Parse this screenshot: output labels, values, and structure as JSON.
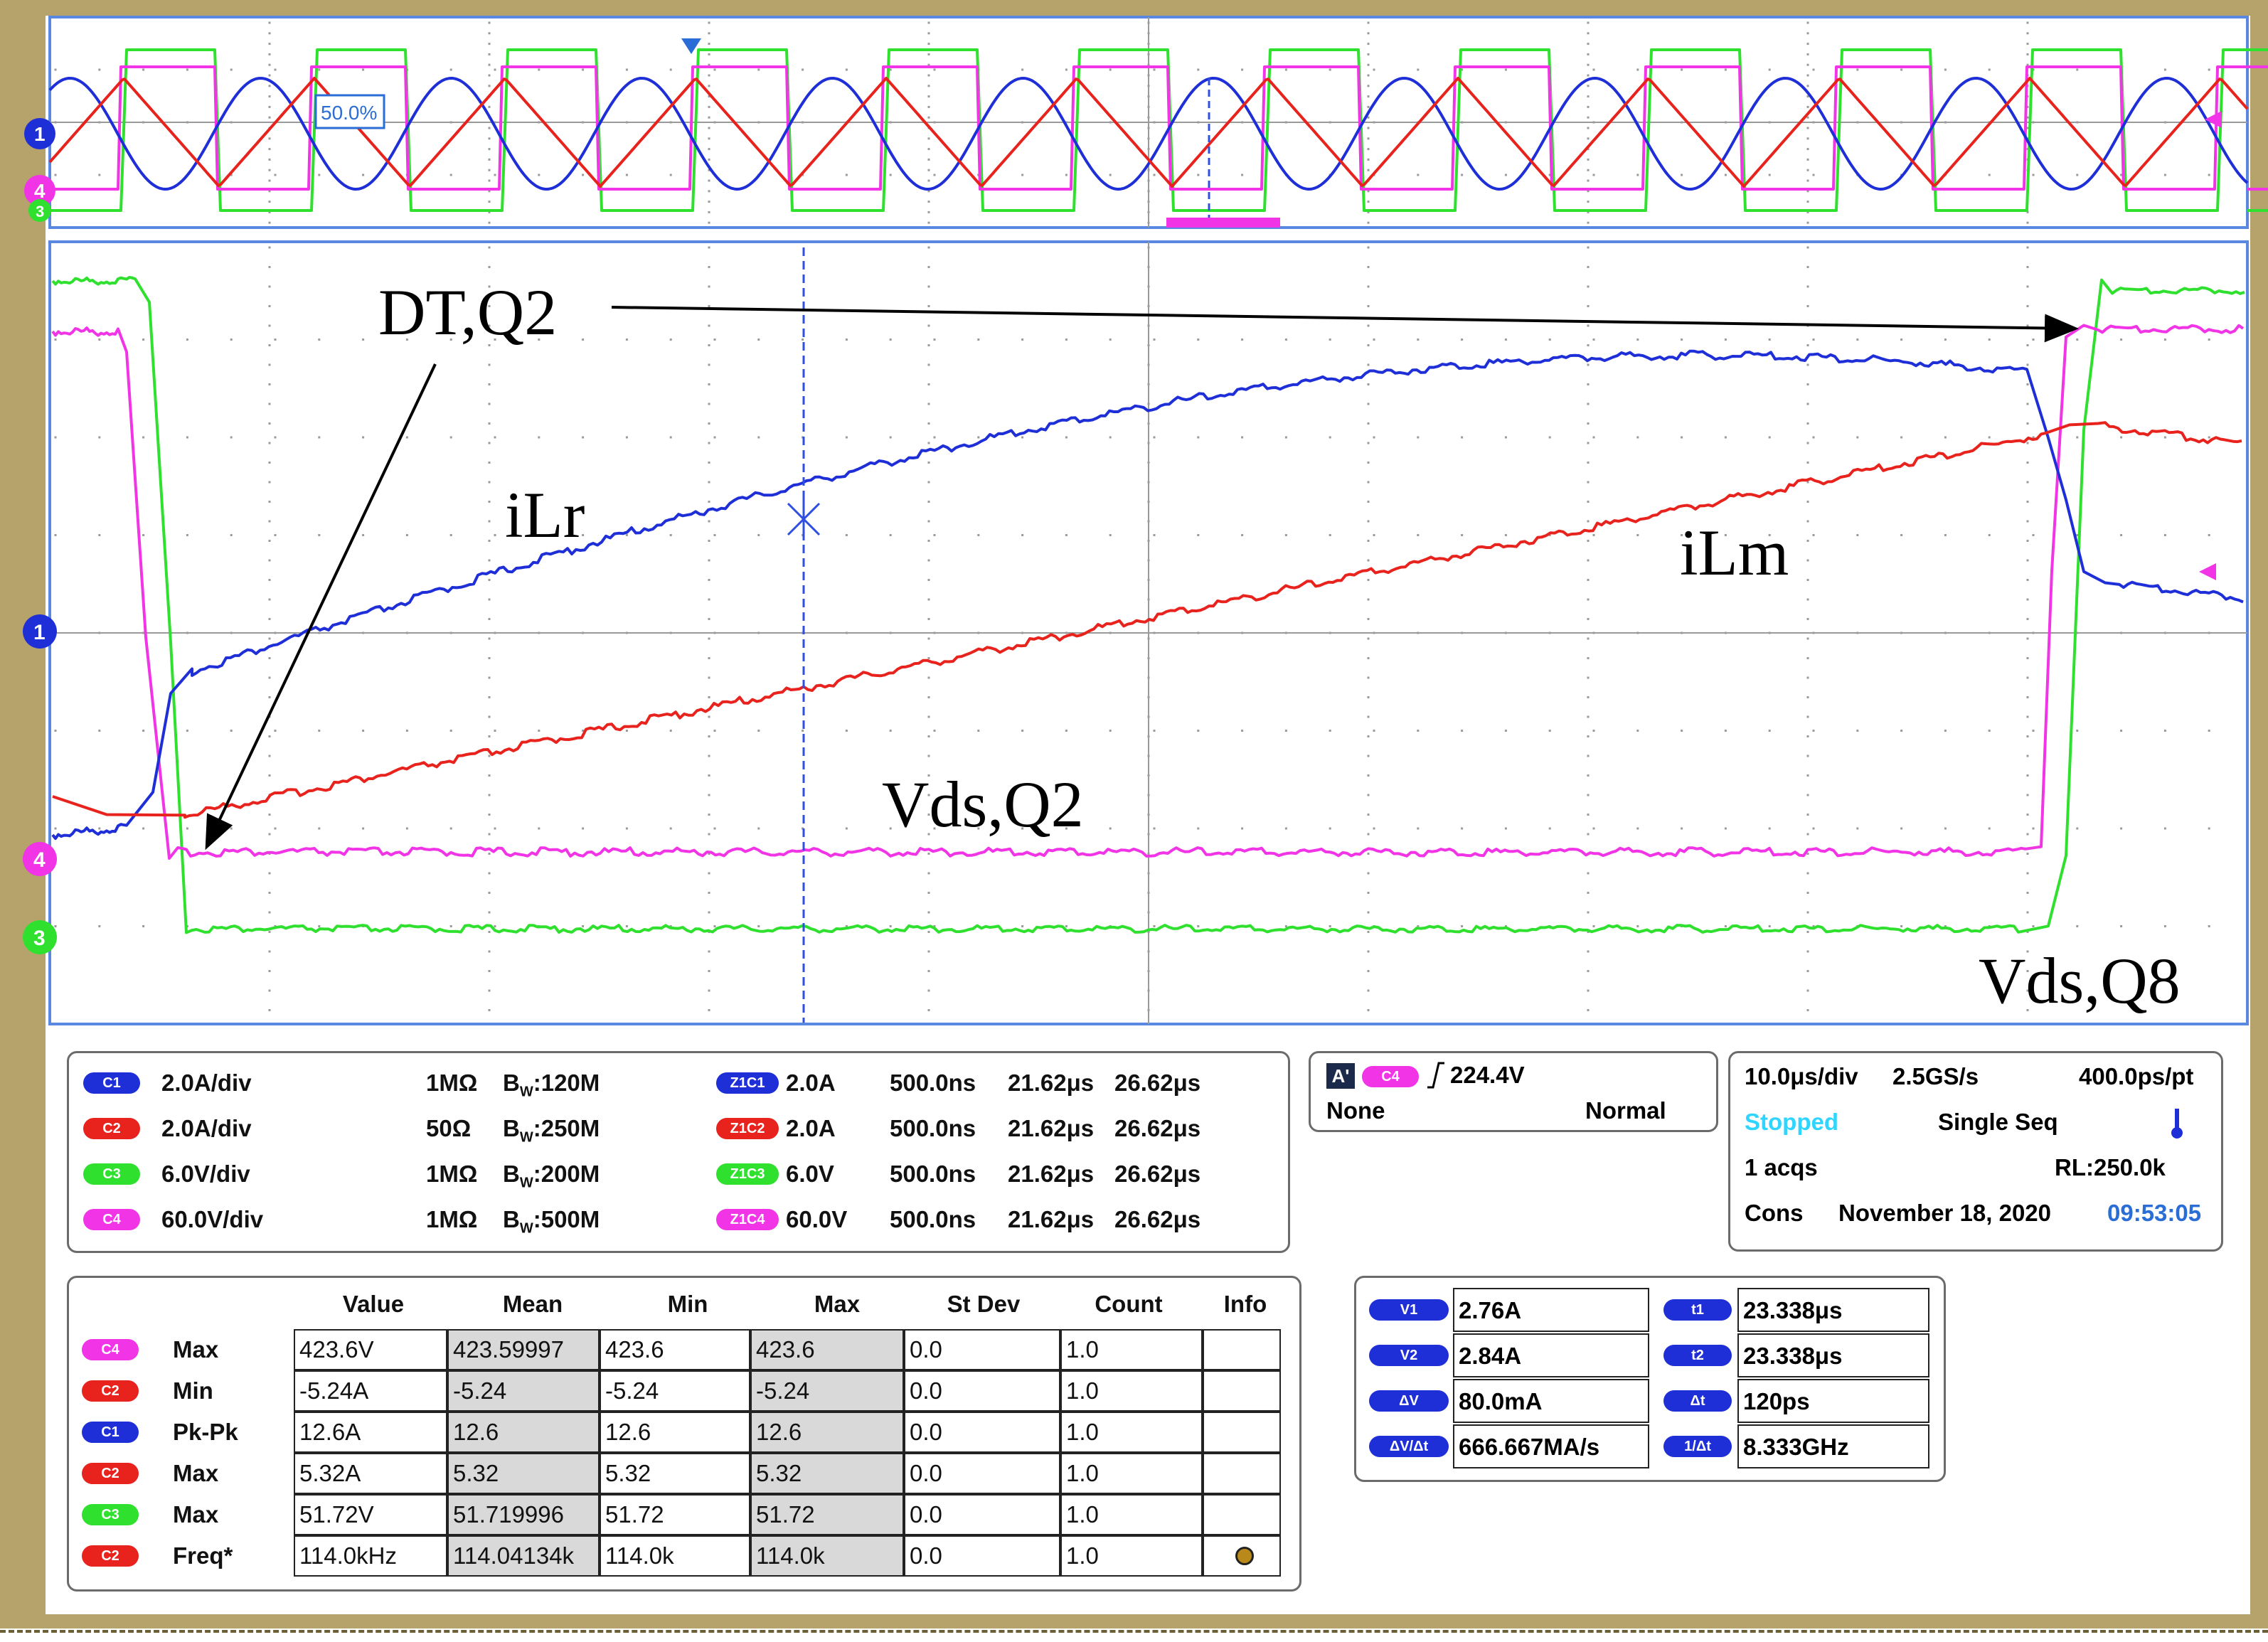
{
  "colors": {
    "c1": "#1f2fd8",
    "c2": "#e8221c",
    "c3": "#2fe02f",
    "c4": "#f034e6",
    "frame": "#b6a36b",
    "stopped": "#2fd5ff",
    "time_accent": "#2a6dd6"
  },
  "icons": {
    "trigger_edge": "rising-edge-icon",
    "thermometer": "thermometer-icon",
    "info": "info-dot-icon"
  },
  "annotations": {
    "dt_q2": "DT,Q2",
    "ilr": "iLr",
    "ilm": "iLm",
    "vds_q2": "Vds,Q2",
    "vds_q8": "Vds,Q8"
  },
  "zoom_window": {
    "percent_label": "50.0%",
    "marker_1": "1",
    "marker_4": "4",
    "marker_3": "3"
  },
  "main_markers": [
    "1",
    "4",
    "3"
  ],
  "chart_data": {
    "type": "line",
    "series": [
      {
        "name": "iLr",
        "channel": "C1"
      },
      {
        "name": "iLm",
        "channel": "C2"
      },
      {
        "name": "Vds,Q8",
        "channel": "C3"
      },
      {
        "name": "Vds,Q2",
        "channel": "C4"
      }
    ],
    "grid": true
  },
  "channels": [
    {
      "pill": "C1",
      "scale": "2.0A/div",
      "imp": "1MΩ",
      "bw_prefix": "B",
      "bw_sub": "W",
      "bw": ":120M",
      "zoom_pill": "Z1C1",
      "zoom_scale": "2.0A",
      "zoom_time": "500.0ns",
      "t_start": "21.62μs",
      "t_end": "26.62μs"
    },
    {
      "pill": "C2",
      "scale": "2.0A/div",
      "imp": "50Ω",
      "bw_prefix": "B",
      "bw_sub": "W",
      "bw": ":250M",
      "zoom_pill": "Z1C2",
      "zoom_scale": "2.0A",
      "zoom_time": "500.0ns",
      "t_start": "21.62μs",
      "t_end": "26.62μs"
    },
    {
      "pill": "C3",
      "scale": "6.0V/div",
      "imp": "1MΩ",
      "bw_prefix": "B",
      "bw_sub": "W",
      "bw": ":200M",
      "zoom_pill": "Z1C3",
      "zoom_scale": "6.0V",
      "zoom_time": "500.0ns",
      "t_start": "21.62μs",
      "t_end": "26.62μs"
    },
    {
      "pill": "C4",
      "scale": "60.0V/div",
      "imp": "1MΩ",
      "bw_prefix": "B",
      "bw_sub": "W",
      "bw": ":500M",
      "zoom_pill": "Z1C4",
      "zoom_scale": "60.0V",
      "zoom_time": "500.0ns",
      "t_start": "21.62μs",
      "t_end": "26.62μs"
    }
  ],
  "trigger": {
    "mode_badge": "A'",
    "source": "C4",
    "level": "224.4V",
    "coupling": "None",
    "mode": "Normal"
  },
  "acquisition": {
    "timebase": "10.0μs/div",
    "sample_rate": "2.5GS/s",
    "resolution": "400.0ps/pt",
    "state": "Stopped",
    "run_mode": "Single Seq",
    "acqs": "1 acqs",
    "record_length": "RL:250.0k",
    "cons": "Cons",
    "date": "November 18, 2020",
    "time": "09:53:05"
  },
  "measurements": {
    "headers": [
      "Value",
      "Mean",
      "Min",
      "Max",
      "St Dev",
      "Count",
      "Info"
    ],
    "rows": [
      {
        "pill": "C4",
        "label": "Max",
        "value": "423.6V",
        "mean": "423.59997",
        "min": "423.6",
        "max": "423.6",
        "stdev": "0.0",
        "count": "1.0"
      },
      {
        "pill": "C2",
        "label": "Min",
        "value": "-5.24A",
        "mean": "-5.24",
        "min": "-5.24",
        "max": "-5.24",
        "stdev": "0.0",
        "count": "1.0"
      },
      {
        "pill": "C1",
        "label": "Pk-Pk",
        "value": "12.6A",
        "mean": "12.6",
        "min": "12.6",
        "max": "12.6",
        "stdev": "0.0",
        "count": "1.0"
      },
      {
        "pill": "C2",
        "label": "Max",
        "value": "5.32A",
        "mean": "5.32",
        "min": "5.32",
        "max": "5.32",
        "stdev": "0.0",
        "count": "1.0"
      },
      {
        "pill": "C3",
        "label": "Max",
        "value": "51.72V",
        "mean": "51.719996",
        "min": "51.72",
        "max": "51.72",
        "stdev": "0.0",
        "count": "1.0"
      },
      {
        "pill": "C2",
        "label": "Freq*",
        "value": "114.0kHz",
        "mean": "114.04134k",
        "min": "114.0k",
        "max": "114.0k",
        "stdev": "0.0",
        "count": "1.0"
      }
    ]
  },
  "cursors": {
    "v1_label": "V1",
    "v1": "2.76A",
    "v2_label": "V2",
    "v2": "2.84A",
    "dv_label": "ΔV",
    "dv": "80.0mA",
    "dvdt_label": "ΔV/Δt",
    "dvdt": "666.667MA/s",
    "t1_label": "t1",
    "t1": "23.338μs",
    "t2_label": "t2",
    "t2": "23.338μs",
    "dt_label": "Δt",
    "dt": "120ps",
    "inv_dt_label": "1/Δt",
    "inv_dt": "8.333GHz"
  }
}
